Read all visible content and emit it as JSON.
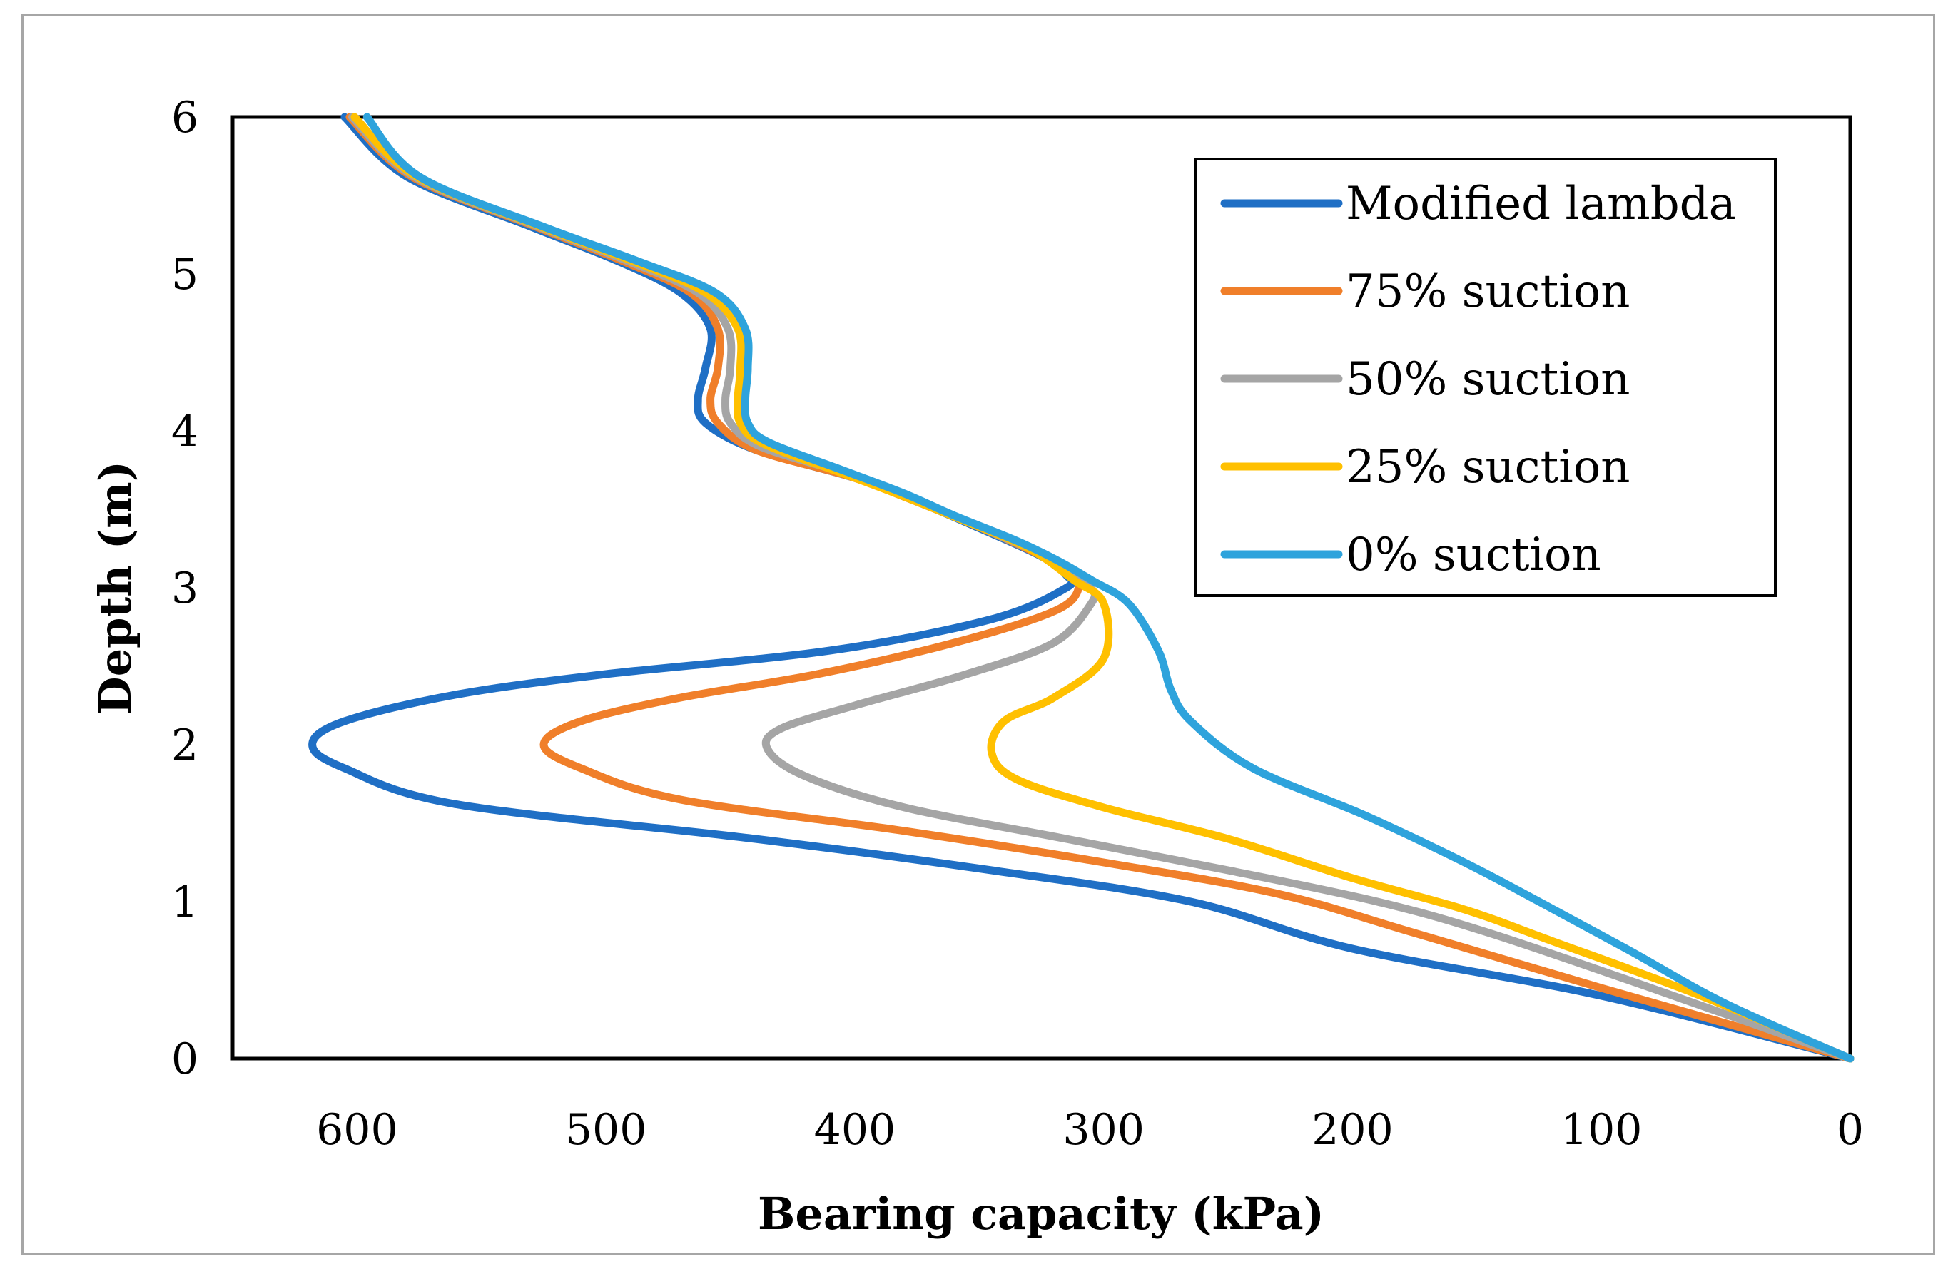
{
  "chart_data": {
    "type": "line",
    "title": "",
    "xlabel": "Bearing capacity (kPa)",
    "ylabel": "Depth (m)",
    "xlim": [
      0,
      650
    ],
    "ylim": [
      0,
      6
    ],
    "x_reversed": true,
    "xticks": [
      600,
      500,
      400,
      300,
      200,
      100,
      0
    ],
    "yticks": [
      0,
      1,
      2,
      3,
      4,
      5,
      6
    ],
    "legend_position": "top-right",
    "grid": false,
    "series": [
      {
        "name": "Modified lambda",
        "color": "#1f6fc5",
        "points": [
          [
            0,
            0
          ],
          [
            100,
            0.4
          ],
          [
            200,
            0.7
          ],
          [
            265,
            1.0
          ],
          [
            345,
            1.2
          ],
          [
            440,
            1.4
          ],
          [
            560,
            1.62
          ],
          [
            605,
            1.85
          ],
          [
            618,
            2.0
          ],
          [
            605,
            2.15
          ],
          [
            560,
            2.32
          ],
          [
            500,
            2.45
          ],
          [
            410,
            2.6
          ],
          [
            345,
            2.8
          ],
          [
            315,
            3.0
          ],
          [
            315,
            3.08
          ],
          [
            325,
            3.2
          ],
          [
            350,
            3.38
          ],
          [
            375,
            3.55
          ],
          [
            400,
            3.7
          ],
          [
            440,
            3.88
          ],
          [
            460,
            4.05
          ],
          [
            463,
            4.2
          ],
          [
            460,
            4.4
          ],
          [
            458,
            4.65
          ],
          [
            470,
            4.88
          ],
          [
            495,
            5.08
          ],
          [
            530,
            5.3
          ],
          [
            580,
            5.62
          ],
          [
            605,
            6.0
          ]
        ]
      },
      {
        "name": "75% suction",
        "color": "#f07f2a",
        "points": [
          [
            0,
            0
          ],
          [
            100,
            0.45
          ],
          [
            175,
            0.8
          ],
          [
            230,
            1.05
          ],
          [
            300,
            1.25
          ],
          [
            380,
            1.45
          ],
          [
            470,
            1.65
          ],
          [
            510,
            1.85
          ],
          [
            525,
            2.0
          ],
          [
            510,
            2.15
          ],
          [
            470,
            2.3
          ],
          [
            415,
            2.45
          ],
          [
            360,
            2.65
          ],
          [
            320,
            2.85
          ],
          [
            310,
            3.0
          ],
          [
            315,
            3.1
          ],
          [
            327,
            3.22
          ],
          [
            352,
            3.4
          ],
          [
            377,
            3.56
          ],
          [
            402,
            3.71
          ],
          [
            440,
            3.88
          ],
          [
            455,
            4.05
          ],
          [
            458,
            4.2
          ],
          [
            455,
            4.4
          ],
          [
            455,
            4.65
          ],
          [
            466,
            4.88
          ],
          [
            493,
            5.08
          ],
          [
            528,
            5.3
          ],
          [
            578,
            5.62
          ],
          [
            603,
            6.0
          ]
        ]
      },
      {
        "name": "50% suction",
        "color": "#a5a5a5",
        "points": [
          [
            0,
            0
          ],
          [
            80,
            0.45
          ],
          [
            145,
            0.8
          ],
          [
            190,
            1.0
          ],
          [
            250,
            1.2
          ],
          [
            315,
            1.4
          ],
          [
            380,
            1.6
          ],
          [
            420,
            1.8
          ],
          [
            435,
            1.97
          ],
          [
            430,
            2.1
          ],
          [
            400,
            2.25
          ],
          [
            355,
            2.45
          ],
          [
            320,
            2.65
          ],
          [
            305,
            2.9
          ],
          [
            305,
            3.0
          ],
          [
            313,
            3.12
          ],
          [
            330,
            3.25
          ],
          [
            355,
            3.42
          ],
          [
            380,
            3.58
          ],
          [
            404,
            3.73
          ],
          [
            438,
            3.9
          ],
          [
            450,
            4.05
          ],
          [
            452,
            4.2
          ],
          [
            450,
            4.4
          ],
          [
            451,
            4.65
          ],
          [
            463,
            4.88
          ],
          [
            491,
            5.08
          ],
          [
            527,
            5.3
          ],
          [
            577,
            5.62
          ],
          [
            602,
            6.0
          ]
        ]
      },
      {
        "name": "25% suction",
        "color": "#ffc000",
        "points": [
          [
            0,
            0
          ],
          [
            60,
            0.4
          ],
          [
            120,
            0.75
          ],
          [
            155,
            0.95
          ],
          [
            200,
            1.15
          ],
          [
            250,
            1.4
          ],
          [
            300,
            1.6
          ],
          [
            335,
            1.78
          ],
          [
            345,
            1.95
          ],
          [
            340,
            2.15
          ],
          [
            320,
            2.3
          ],
          [
            300,
            2.55
          ],
          [
            300,
            2.9
          ],
          [
            312,
            3.05
          ],
          [
            330,
            3.25
          ],
          [
            355,
            3.42
          ],
          [
            380,
            3.58
          ],
          [
            405,
            3.73
          ],
          [
            437,
            3.92
          ],
          [
            446,
            4.05
          ],
          [
            447,
            4.2
          ],
          [
            446,
            4.4
          ],
          [
            447,
            4.65
          ],
          [
            460,
            4.88
          ],
          [
            489,
            5.08
          ],
          [
            526,
            5.3
          ],
          [
            576,
            5.62
          ],
          [
            601,
            6.0
          ]
        ]
      },
      {
        "name": "0% suction",
        "color": "#2ea3dc",
        "points": [
          [
            0,
            0
          ],
          [
            50,
            0.35
          ],
          [
            90,
            0.7
          ],
          [
            125,
            1.0
          ],
          [
            155,
            1.25
          ],
          [
            195,
            1.55
          ],
          [
            240,
            1.85
          ],
          [
            265,
            2.15
          ],
          [
            273,
            2.35
          ],
          [
            278,
            2.6
          ],
          [
            290,
            2.9
          ],
          [
            305,
            3.05
          ],
          [
            318,
            3.17
          ],
          [
            335,
            3.3
          ],
          [
            360,
            3.46
          ],
          [
            380,
            3.6
          ],
          [
            405,
            3.75
          ],
          [
            435,
            3.93
          ],
          [
            443,
            4.05
          ],
          [
            444,
            4.2
          ],
          [
            443,
            4.4
          ],
          [
            444,
            4.65
          ],
          [
            456,
            4.88
          ],
          [
            487,
            5.08
          ],
          [
            525,
            5.3
          ],
          [
            575,
            5.62
          ],
          [
            596,
            6.0
          ]
        ]
      }
    ]
  }
}
